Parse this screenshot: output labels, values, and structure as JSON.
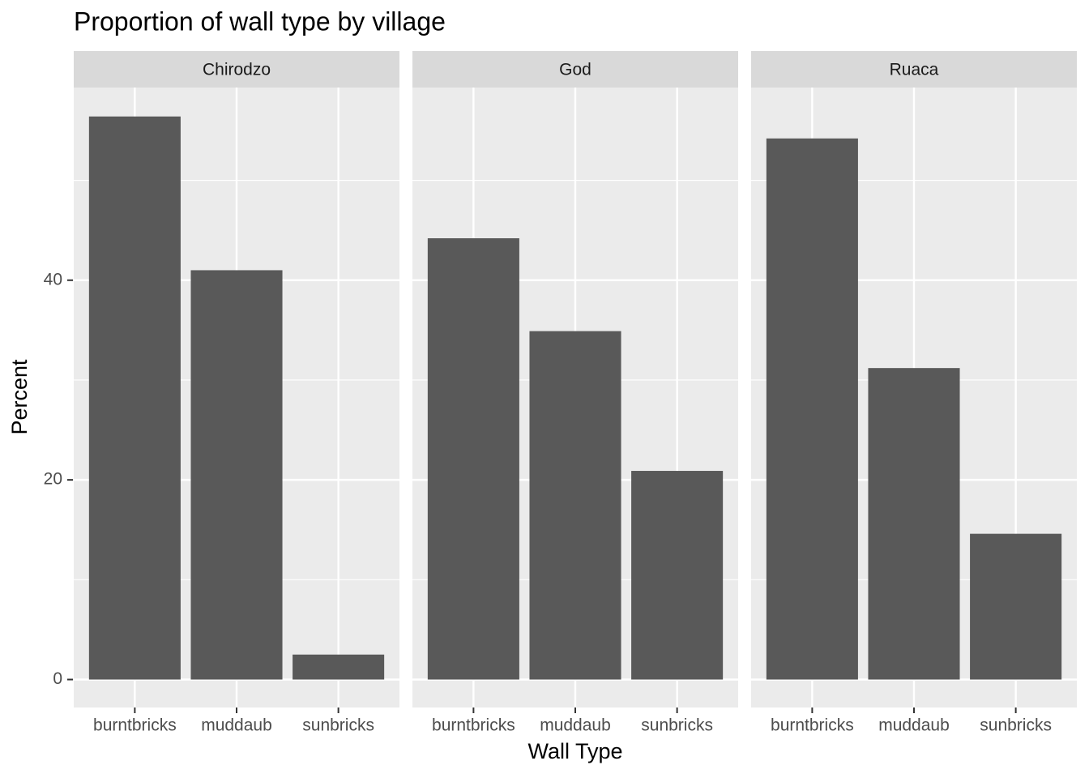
{
  "chart_data": {
    "type": "bar",
    "title": "Proportion of wall type by village",
    "x_label": "Wall Type",
    "y_label": "Percent",
    "color": "#595959",
    "ylim": [
      -2.8,
      59.3
    ],
    "yticks": [
      0,
      20,
      40
    ],
    "minor_gridlines": [
      10,
      30,
      50
    ],
    "grid": true,
    "facets": [
      {
        "name": "Chirodzo",
        "categories": [
          "burntbricks",
          "muddaub",
          "sunbricks"
        ],
        "values": [
          56.4,
          41.0,
          2.5
        ]
      },
      {
        "name": "God",
        "categories": [
          "burntbricks",
          "muddaub",
          "sunbricks"
        ],
        "values": [
          44.2,
          34.9,
          20.9
        ]
      },
      {
        "name": "Ruaca",
        "categories": [
          "burntbricks",
          "muddaub",
          "sunbricks"
        ],
        "values": [
          54.2,
          31.2,
          14.6
        ]
      }
    ]
  }
}
